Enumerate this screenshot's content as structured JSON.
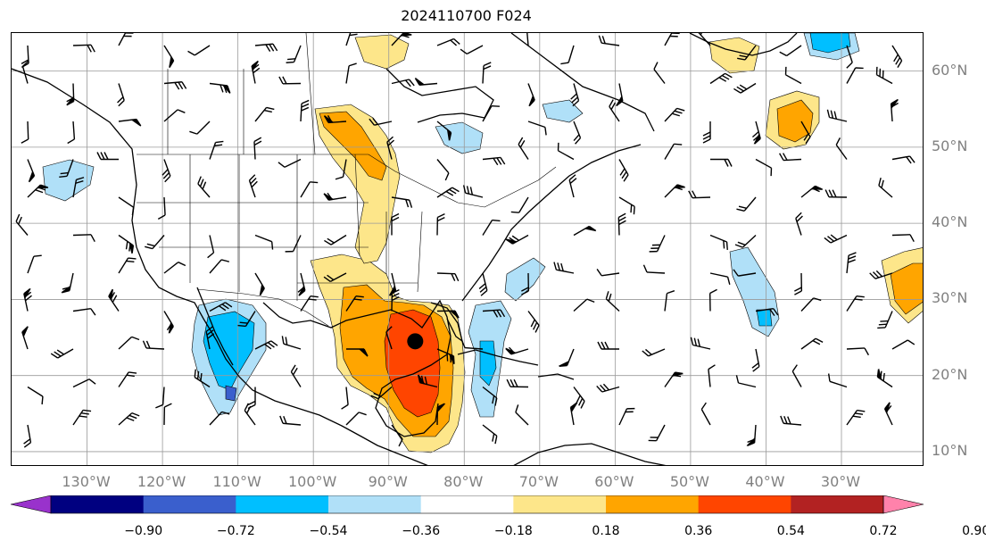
{
  "title": "2024110700 F024",
  "lat_labels": [
    "60°N",
    "50°N",
    "40°N",
    "30°N",
    "20°N",
    "10°N"
  ],
  "lat_values": [
    60,
    50,
    40,
    30,
    20,
    10
  ],
  "lon_labels": [
    "130°W",
    "120°W",
    "110°W",
    "100°W",
    "90°W",
    "80°W",
    "70°W",
    "60°W",
    "50°W",
    "40°W",
    "30°W"
  ],
  "lon_values": [
    -130,
    -120,
    -110,
    -100,
    -90,
    -80,
    -70,
    -60,
    -50,
    -40,
    -30
  ],
  "map_extent": {
    "lon": [
      -140,
      -19
    ],
    "lat": [
      8,
      65
    ]
  },
  "storm_center": {
    "lon": -86.5,
    "lat": 24.5
  },
  "colorbar": {
    "ticks": [
      "−0.90",
      "−0.72",
      "−0.54",
      "−0.36",
      "−0.18",
      "0.18",
      "0.36",
      "0.54",
      "0.72",
      "0.90"
    ],
    "levels": [
      -0.9,
      -0.72,
      -0.54,
      -0.36,
      -0.18,
      0.18,
      0.36,
      0.54,
      0.72,
      0.9
    ],
    "colors": [
      "#9932cc",
      "#000080",
      "#3a5fcd",
      "#00bfff",
      "#b0e0f8",
      "#ffffff",
      "#fde68a",
      "#ffa500",
      "#ff4500",
      "#b22222",
      "#ff82ab"
    ],
    "extend": "both"
  }
}
